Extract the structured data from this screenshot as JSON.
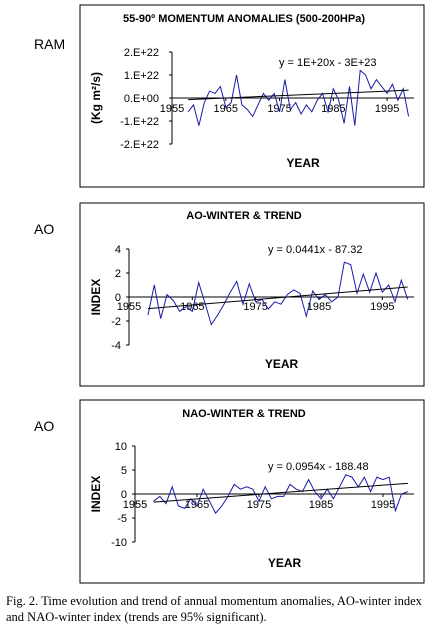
{
  "figure": {
    "caption": "Fig. 2. Time evolution and trend of annual momentum anomalies, AO-winter index and NAO-winter index (trends are 95% significant)."
  },
  "chart_data": [
    {
      "type": "line",
      "side_label": "RAM",
      "title": "55-90º MOMENTUM ANOMALIES (500-200HPa)",
      "xlabel": "YEAR",
      "ylabel": "(Kg m²/s)",
      "xlim": [
        1955,
        2000
      ],
      "ylim": [
        -2e+22,
        2e+22
      ],
      "yticks": [
        2e+22,
        1e+22,
        0,
        -1e+22,
        -2e+22
      ],
      "ytick_labels": [
        "2.E+22",
        "1.E+22",
        "0.E+00",
        "-1.E+22",
        "-2.E+22"
      ],
      "xticks": [
        1955,
        1965,
        1975,
        1985,
        1995
      ],
      "xtick_labels": [
        "1955",
        "1965",
        "1975",
        "1985",
        "1995"
      ],
      "grid": false,
      "equation": "y = 1E+20x - 3E+23",
      "trend": {
        "slope": 1e+20,
        "intercept": -1.965e+23,
        "x_start": 1958,
        "x_end": 1999
      },
      "series": [
        {
          "x": [
            1958,
            1959,
            1960,
            1961,
            1962,
            1963,
            1964,
            1965,
            1966,
            1967,
            1968,
            1969,
            1970,
            1971,
            1972,
            1973,
            1974,
            1975,
            1976,
            1977,
            1978,
            1979,
            1980,
            1981,
            1982,
            1983,
            1984,
            1985,
            1986,
            1987,
            1988,
            1989,
            1990,
            1991,
            1992,
            1993,
            1994,
            1995,
            1996,
            1997,
            1998,
            1999
          ],
          "y": [
            -6e+21,
            -3e+21,
            -1.2e+22,
            -2e+21,
            3e+21,
            2e+21,
            5e+21,
            -4e+21,
            -2e+21,
            1e+22,
            -3e+21,
            -5e+21,
            -8e+21,
            -3e+21,
            2e+21,
            -1e+21,
            2e+21,
            -6e+21,
            8e+21,
            -5e+21,
            -2e+21,
            -7e+21,
            -3e+21,
            -6e+21,
            -1e+21,
            2e+21,
            -6e+21,
            4e+21,
            -1e+21,
            -1.1e+22,
            5e+21,
            -1.2e+22,
            1.2e+22,
            1e+22,
            4e+21,
            8e+21,
            5e+21,
            2e+21,
            6e+21,
            -1e+21,
            4e+21,
            -8e+21
          ]
        }
      ]
    },
    {
      "type": "line",
      "side_label": "AO",
      "title": "AO-WINTER & TREND",
      "xlabel": "YEAR",
      "ylabel": "INDEX",
      "xlim": [
        1955,
        2000
      ],
      "ylim": [
        -4,
        4
      ],
      "yticks": [
        4,
        2,
        0,
        -2,
        -4
      ],
      "ytick_labels": [
        "4",
        "2",
        "0",
        "-2",
        "-4"
      ],
      "xticks": [
        1955,
        1965,
        1975,
        1985,
        1995
      ],
      "xtick_labels": [
        "1955",
        "1965",
        "1975",
        "1985",
        "1995"
      ],
      "grid": false,
      "equation": "y = 0.0441x - 87.32",
      "trend": {
        "slope": 0.0441,
        "intercept": -87.32,
        "x_start": 1958,
        "x_end": 1999
      },
      "series": [
        {
          "x": [
            1958,
            1959,
            1960,
            1961,
            1962,
            1963,
            1964,
            1965,
            1966,
            1967,
            1968,
            1969,
            1970,
            1971,
            1972,
            1973,
            1974,
            1975,
            1976,
            1977,
            1978,
            1979,
            1980,
            1981,
            1982,
            1983,
            1984,
            1985,
            1986,
            1987,
            1988,
            1989,
            1990,
            1991,
            1992,
            1993,
            1994,
            1995,
            1996,
            1997,
            1998,
            1999
          ],
          "y": [
            -1.5,
            1.0,
            -1.8,
            0.2,
            -0.3,
            -1.2,
            -0.8,
            -1.2,
            1.2,
            -0.5,
            -2.3,
            -1.5,
            -0.6,
            0.4,
            1.3,
            -0.6,
            1.1,
            -0.4,
            -0.2,
            -1.0,
            -0.4,
            -0.6,
            0.2,
            0.6,
            0.3,
            -1.6,
            0.5,
            -0.2,
            0.2,
            -0.4,
            0.0,
            2.9,
            2.7,
            0.3,
            1.9,
            0.4,
            2.0,
            0.4,
            1.0,
            -0.4,
            1.4,
            -0.2
          ]
        }
      ]
    },
    {
      "type": "line",
      "side_label": "AO",
      "title": "NAO-WINTER & TREND",
      "xlabel": "YEAR",
      "ylabel": "INDEX",
      "xlim": [
        1955,
        2000
      ],
      "ylim": [
        -10,
        10
      ],
      "yticks": [
        10,
        5,
        0,
        -5,
        -10
      ],
      "ytick_labels": [
        "10",
        "5",
        "0",
        "-5",
        "-10"
      ],
      "xticks": [
        1955,
        1965,
        1975,
        1985,
        1995
      ],
      "xtick_labels": [
        "1955",
        "1965",
        "1975",
        "1985",
        "1995"
      ],
      "grid": false,
      "equation": "y = 0.0954x - 188.48",
      "trend": {
        "slope": 0.0954,
        "intercept": -188.48,
        "x_start": 1958,
        "x_end": 1999
      },
      "series": [
        {
          "x": [
            1958,
            1959,
            1960,
            1961,
            1962,
            1963,
            1964,
            1965,
            1966,
            1967,
            1968,
            1969,
            1970,
            1971,
            1972,
            1973,
            1974,
            1975,
            1976,
            1977,
            1978,
            1979,
            1980,
            1981,
            1982,
            1983,
            1984,
            1985,
            1986,
            1987,
            1988,
            1989,
            1990,
            1991,
            1992,
            1993,
            1994,
            1995,
            1996,
            1997,
            1998,
            1999
          ],
          "y": [
            -1.5,
            -0.5,
            -2.0,
            1.5,
            -2.5,
            -3.0,
            -1.0,
            -2.5,
            1.0,
            -1.5,
            -4.0,
            -2.5,
            -0.5,
            2.0,
            1.0,
            1.5,
            1.0,
            -1.5,
            1.5,
            -1.0,
            -0.5,
            -0.5,
            2.0,
            1.0,
            0.5,
            3.0,
            0.5,
            -1.0,
            1.0,
            -1.0,
            1.5,
            4.0,
            3.5,
            1.5,
            3.5,
            0.5,
            3.5,
            3.0,
            3.5,
            -3.5,
            0.0,
            0.5
          ]
        }
      ]
    }
  ]
}
